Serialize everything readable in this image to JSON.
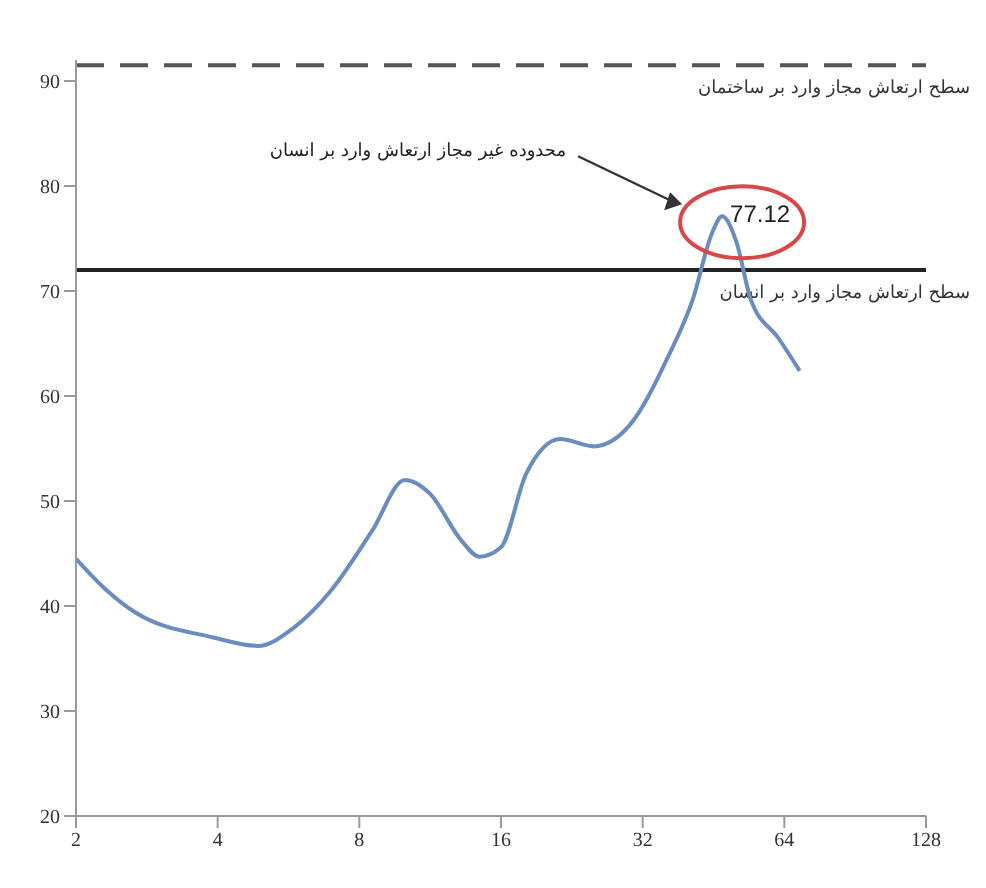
{
  "chart_data": {
    "type": "line",
    "x": [
      2,
      2.31,
      2.67,
      3.92,
      4.87,
      5.79,
      7.0,
      8.5,
      10.0,
      11.3,
      13.2,
      14.4,
      16,
      18.1,
      21.4,
      25.2,
      30.0,
      36.2,
      40.9,
      45.0,
      47.2,
      50.6,
      54.3,
      62.2,
      69.0
    ],
    "series": [
      {
        "color": "#6a8cbf",
        "values": [
          44.5,
          41.6,
          39.4,
          37,
          36.2,
          37.9,
          41.6,
          47.1,
          52,
          50.7,
          46.2,
          44.7,
          45.6,
          52.6,
          55.9,
          55.2,
          57.2,
          63.7,
          69.2,
          75.6,
          77.12,
          74.7,
          69.2,
          65.5,
          62.4
        ]
      }
    ],
    "log": "x",
    "xlim": [
      2,
      128
    ],
    "xticks": [
      2,
      4,
      8,
      16,
      32,
      64,
      128
    ],
    "ylim": [
      20,
      92
    ],
    "yticks": [
      20,
      30,
      40,
      50,
      60,
      70,
      80,
      90
    ],
    "grid": false,
    "legend": false,
    "marker": "none",
    "line_style": "solid",
    "ref_lines": [
      {
        "axis": "y",
        "value": 91.5,
        "label": "سطح ارتعاش مجاز وارد بر ساختمان",
        "color": "#555555",
        "line_style": "dashed"
      },
      {
        "axis": "y",
        "value": 72,
        "label": "سطح ارتعاش مجاز وارد بر انسان",
        "color": "#222222",
        "line_style": "solid"
      }
    ],
    "annotations": [
      {
        "text": "77.12",
        "x": 47.2,
        "y": 77.12
      },
      "محدوده غیر مجاز ارتعاش وارد بر انسان"
    ]
  }
}
